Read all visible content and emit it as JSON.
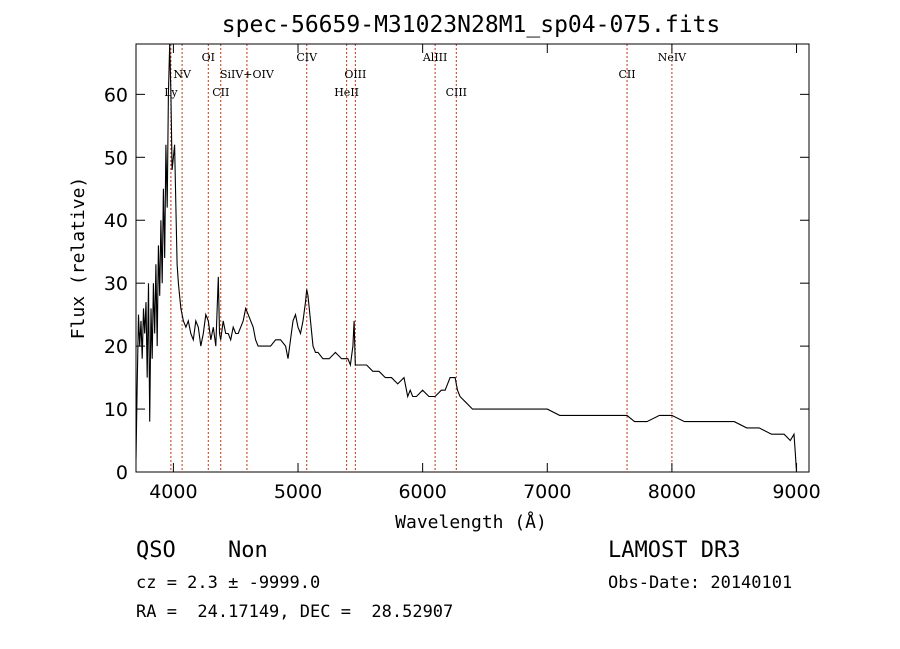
{
  "chart_data": {
    "type": "line",
    "title": "spec-56659-M31023N28M1_sp04-075.fits",
    "xlabel": "Wavelength (Å)",
    "ylabel": "Flux (relative)",
    "xlim": [
      3700,
      9100
    ],
    "ylim": [
      0,
      68
    ],
    "xticks": [
      4000,
      5000,
      6000,
      7000,
      8000,
      9000
    ],
    "yticks": [
      0,
      10,
      20,
      30,
      40,
      50,
      60
    ],
    "series": [
      {
        "x": [
          3700,
          3710,
          3720,
          3730,
          3740,
          3750,
          3760,
          3770,
          3780,
          3790,
          3800,
          3810,
          3820,
          3830,
          3840,
          3850,
          3860,
          3870,
          3880,
          3890,
          3900,
          3910,
          3920,
          3930,
          3940,
          3950,
          3960,
          3970,
          3980,
          3990,
          4000,
          4010,
          4020,
          4030,
          4040,
          4050,
          4060,
          4070,
          4080,
          4100,
          4120,
          4140,
          4160,
          4180,
          4200,
          4220,
          4240,
          4260,
          4280,
          4300,
          4320,
          4340,
          4360,
          4370,
          4380,
          4400,
          4420,
          4440,
          4460,
          4480,
          4500,
          4520,
          4540,
          4560,
          4580,
          4600,
          4620,
          4640,
          4660,
          4680,
          4700,
          4740,
          4780,
          4820,
          4860,
          4900,
          4920,
          4940,
          4960,
          4980,
          5000,
          5020,
          5040,
          5060,
          5070,
          5080,
          5100,
          5120,
          5140,
          5160,
          5200,
          5250,
          5300,
          5350,
          5400,
          5420,
          5440,
          5450,
          5460,
          5500,
          5550,
          5600,
          5650,
          5700,
          5750,
          5800,
          5850,
          5880,
          5900,
          5920,
          5950,
          6000,
          6050,
          6100,
          6150,
          6180,
          6200,
          6220,
          6240,
          6260,
          6280,
          6300,
          6350,
          6400,
          6500,
          6600,
          6700,
          6800,
          6900,
          7000,
          7100,
          7200,
          7300,
          7400,
          7500,
          7600,
          7640,
          7700,
          7800,
          7900,
          8000,
          8100,
          8200,
          8300,
          8400,
          8500,
          8600,
          8700,
          8800,
          8850,
          8900,
          8950,
          8980,
          8990,
          9000
        ],
        "y": [
          2,
          14,
          25,
          20,
          24,
          18,
          26,
          22,
          27,
          15,
          30,
          8,
          26,
          18,
          30,
          22,
          33,
          20,
          36,
          28,
          40,
          30,
          45,
          34,
          52,
          42,
          60,
          68,
          60,
          48,
          50,
          52,
          42,
          33,
          30,
          28,
          26,
          25,
          24,
          23,
          24,
          22,
          21,
          24,
          23,
          20,
          22,
          25,
          24,
          21,
          23,
          20,
          31,
          22,
          21,
          24,
          22,
          22,
          21,
          23,
          22,
          22,
          23,
          24,
          26,
          25,
          24,
          23,
          21,
          20,
          20,
          20,
          20,
          21,
          21,
          20,
          18,
          21,
          24,
          25,
          23,
          22,
          24,
          27,
          29,
          28,
          24,
          20,
          19,
          19,
          18,
          18,
          19,
          18,
          18,
          17,
          20,
          24,
          17,
          17,
          17,
          16,
          16,
          15,
          15,
          14,
          15,
          12,
          13,
          12,
          12,
          13,
          12,
          12,
          13,
          13,
          14,
          15,
          15,
          15,
          13,
          12,
          11,
          10,
          10,
          10,
          10,
          10,
          10,
          10,
          9,
          9,
          9,
          9,
          9,
          9,
          9,
          8,
          8,
          9,
          9,
          8,
          8,
          8,
          8,
          8,
          7,
          7,
          6,
          6,
          6,
          5,
          6,
          3,
          0
        ]
      }
    ],
    "lines": [
      {
        "label": "Ly",
        "x": 3980,
        "row": 3
      },
      {
        "label": "NV",
        "x": 4070,
        "row": 2
      },
      {
        "label": "OI",
        "x": 4280,
        "row": 1
      },
      {
        "label": "CII",
        "x": 4380,
        "row": 3
      },
      {
        "label": "SiIV+OIV",
        "x": 4590,
        "row": 2
      },
      {
        "label": "CIV",
        "x": 5070,
        "row": 1
      },
      {
        "label": "HeII",
        "x": 5390,
        "row": 3
      },
      {
        "label": "OIII",
        "x": 5460,
        "row": 2
      },
      {
        "label": "AlIII",
        "x": 6100,
        "row": 1
      },
      {
        "label": "CIII",
        "x": 6270,
        "row": 3
      },
      {
        "label": "CII",
        "x": 7640,
        "row": 2
      },
      {
        "label": "NeIV",
        "x": 8000,
        "row": 1
      }
    ],
    "line_color": "#cc3300"
  },
  "info": {
    "class": "QSO",
    "subclass": "Non",
    "survey": "LAMOST DR3",
    "cz": "cz = 2.3 ± -9999.0",
    "obs_date": "Obs-Date: 20140101",
    "coords": "RA =  24.17149, DEC =  28.52907"
  }
}
